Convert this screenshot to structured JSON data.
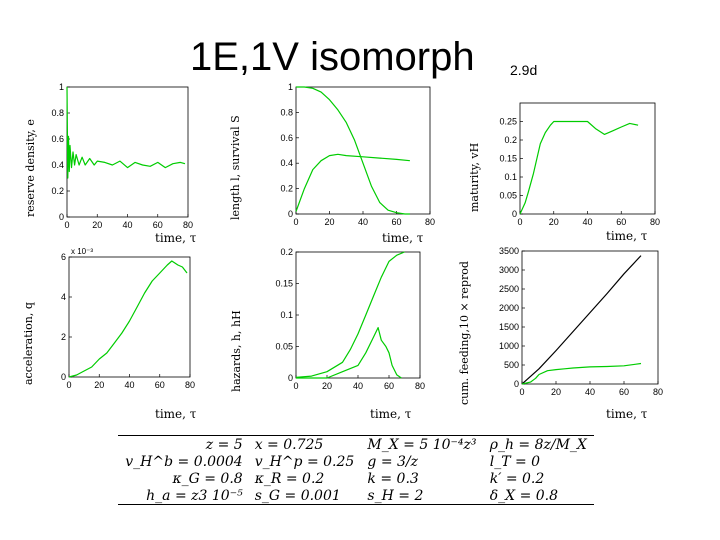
{
  "title": "1E,1V isomorph",
  "subtitle": "2.9d",
  "axis_labels": {
    "p1_y": "reserve density, e",
    "p2_y": "length l, survival S",
    "p3_y": "maturity, vH",
    "p4_y": "acceleration, q",
    "p5_y": "hazards, h, hH",
    "p6_y": "cum. feeding,10 × reprod",
    "x": "time, τ"
  },
  "chart_data": [
    {
      "id": "p1",
      "type": "line",
      "title": "",
      "xlabel": "time, τ",
      "ylabel": "reserve density, e",
      "xlim": [
        0,
        80
      ],
      "ylim": [
        0,
        1
      ],
      "xticks": [
        0,
        20,
        40,
        60,
        80
      ],
      "yticks": [
        0,
        0.2,
        0.4,
        0.6,
        0.8,
        1
      ],
      "xtick_labels": [
        "0",
        "20",
        "40",
        "60",
        "80"
      ],
      "ytick_labels": [
        "0",
        "0.2",
        "0.4",
        "0.6",
        "0.8",
        "1"
      ],
      "series": [
        {
          "name": "e",
          "color": "#00cc00",
          "x": [
            0,
            0.5,
            1,
            1.5,
            2,
            3,
            4,
            5,
            6,
            8,
            10,
            12,
            15,
            18,
            20,
            25,
            30,
            35,
            40,
            45,
            50,
            55,
            60,
            65,
            70,
            75,
            78
          ],
          "y": [
            1.0,
            0.3,
            0.62,
            0.35,
            0.55,
            0.38,
            0.5,
            0.4,
            0.48,
            0.4,
            0.46,
            0.4,
            0.45,
            0.4,
            0.43,
            0.42,
            0.4,
            0.43,
            0.38,
            0.42,
            0.4,
            0.39,
            0.42,
            0.38,
            0.41,
            0.42,
            0.41
          ]
        }
      ]
    },
    {
      "id": "p2",
      "type": "line",
      "title": "",
      "xlabel": "time, τ",
      "ylabel": "length l, survival S",
      "xlim": [
        0,
        80
      ],
      "ylim": [
        0,
        1
      ],
      "xticks": [
        0,
        20,
        40,
        60,
        80
      ],
      "yticks": [
        0,
        0.2,
        0.4,
        0.6,
        0.8,
        1
      ],
      "xtick_labels": [
        "0",
        "20",
        "40",
        "60",
        "80"
      ],
      "ytick_labels": [
        "0",
        "0.2",
        "0.4",
        "0.6",
        "0.8",
        "1"
      ],
      "series": [
        {
          "name": "S",
          "color": "#00cc00",
          "x": [
            0,
            5,
            10,
            15,
            20,
            25,
            30,
            35,
            40,
            45,
            50,
            55,
            60,
            65,
            68
          ],
          "y": [
            1.0,
            1.0,
            0.99,
            0.96,
            0.9,
            0.82,
            0.72,
            0.58,
            0.4,
            0.22,
            0.09,
            0.03,
            0.01,
            0.0,
            0.0
          ]
        },
        {
          "name": "l",
          "color": "#00cc00",
          "x": [
            0,
            5,
            10,
            15,
            20,
            25,
            30,
            40,
            50,
            60,
            68
          ],
          "y": [
            0.02,
            0.2,
            0.35,
            0.42,
            0.46,
            0.47,
            0.46,
            0.45,
            0.44,
            0.43,
            0.42
          ]
        }
      ]
    },
    {
      "id": "p3",
      "type": "line",
      "title": "",
      "xlabel": "time, τ",
      "ylabel": "maturity, vH",
      "xlim": [
        0,
        80
      ],
      "ylim": [
        0,
        0.3
      ],
      "xticks": [
        0,
        20,
        40,
        60,
        80
      ],
      "yticks": [
        0,
        0.05,
        0.1,
        0.15,
        0.2,
        0.25
      ],
      "xtick_labels": [
        "0",
        "20",
        "40",
        "60",
        "80"
      ],
      "ytick_labels": [
        "0",
        "0.05",
        "0.1",
        "0.15",
        "0.2",
        "0.25"
      ],
      "series": [
        {
          "name": "vH",
          "color": "#00cc00",
          "x": [
            0,
            3,
            5,
            8,
            10,
            12,
            15,
            18,
            20,
            30,
            40,
            45,
            50,
            55,
            60,
            65,
            70
          ],
          "y": [
            0,
            0.03,
            0.06,
            0.11,
            0.15,
            0.19,
            0.22,
            0.24,
            0.25,
            0.25,
            0.25,
            0.23,
            0.215,
            0.225,
            0.235,
            0.245,
            0.24
          ]
        }
      ]
    },
    {
      "id": "p4",
      "type": "line",
      "title": "",
      "xlabel": "time, τ",
      "ylabel": "acceleration, q",
      "xlim": [
        0,
        80
      ],
      "ylim": [
        0,
        0.006
      ],
      "xticks": [
        0,
        20,
        40,
        60,
        80
      ],
      "yticks": [
        0,
        0.002,
        0.004,
        0.006
      ],
      "xtick_labels": [
        "0",
        "20",
        "40",
        "60",
        "80"
      ],
      "ytick_labels": [
        "0",
        "2",
        "4",
        "6"
      ],
      "exponent_label": "x 10⁻³",
      "series": [
        {
          "name": "q",
          "color": "#00cc00",
          "x": [
            0,
            5,
            10,
            15,
            20,
            25,
            30,
            35,
            40,
            45,
            50,
            55,
            60,
            65,
            68,
            72,
            75,
            78
          ],
          "y": [
            0,
            0.0001,
            0.0003,
            0.0005,
            0.0009,
            0.0012,
            0.0017,
            0.0022,
            0.0028,
            0.0035,
            0.0042,
            0.0048,
            0.0052,
            0.0056,
            0.0058,
            0.0056,
            0.0055,
            0.0052
          ]
        }
      ]
    },
    {
      "id": "p5",
      "type": "line",
      "title": "",
      "xlabel": "time, τ",
      "ylabel": "hazards, h, hH",
      "xlim": [
        0,
        80
      ],
      "ylim": [
        0,
        0.2
      ],
      "xticks": [
        0,
        20,
        40,
        60,
        80
      ],
      "yticks": [
        0,
        0.05,
        0.1,
        0.15,
        0.2
      ],
      "xtick_labels": [
        "0",
        "20",
        "40",
        "60",
        "80"
      ],
      "ytick_labels": [
        "0",
        "0.05",
        "0.1",
        "0.15",
        "0.2"
      ],
      "series": [
        {
          "name": "h",
          "color": "#00cc00",
          "x": [
            0,
            10,
            20,
            30,
            35,
            40,
            45,
            50,
            55,
            60,
            65,
            70
          ],
          "y": [
            0.001,
            0.003,
            0.01,
            0.025,
            0.045,
            0.07,
            0.1,
            0.13,
            0.16,
            0.185,
            0.195,
            0.2
          ]
        },
        {
          "name": "hH",
          "color": "#00cc00",
          "x": [
            0,
            20,
            30,
            40,
            45,
            50,
            53,
            55,
            58,
            60,
            62,
            65,
            68
          ],
          "y": [
            0,
            0,
            0.01,
            0.02,
            0.04,
            0.065,
            0.08,
            0.06,
            0.05,
            0.04,
            0.02,
            0.005,
            0
          ]
        }
      ]
    },
    {
      "id": "p6",
      "type": "line",
      "title": "",
      "xlabel": "time, τ",
      "ylabel": "cum. feeding,10 × reprod",
      "xlim": [
        0,
        80
      ],
      "ylim": [
        0,
        3500
      ],
      "xticks": [
        0,
        20,
        40,
        60,
        80
      ],
      "yticks": [
        0,
        500,
        1000,
        1500,
        2000,
        2500,
        3000,
        3500
      ],
      "xtick_labels": [
        "0",
        "20",
        "40",
        "60",
        "80"
      ],
      "ytick_labels": [
        "0",
        "500",
        "1000",
        "1500",
        "2000",
        "2500",
        "3000",
        "3500"
      ],
      "series": [
        {
          "name": "cum. feeding",
          "color": "#000000",
          "x": [
            0,
            10,
            20,
            30,
            40,
            50,
            60,
            70
          ],
          "y": [
            0,
            400,
            880,
            1380,
            1880,
            2380,
            2900,
            3380
          ]
        },
        {
          "name": "10 × reprod",
          "color": "#00cc00",
          "x": [
            0,
            5,
            8,
            10,
            15,
            20,
            25,
            30,
            40,
            50,
            60,
            70
          ],
          "y": [
            0,
            50,
            150,
            250,
            350,
            380,
            400,
            420,
            450,
            460,
            480,
            540
          ]
        }
      ]
    }
  ],
  "params": [
    [
      "z = 5",
      "x = 0.725",
      "M_X = 5 10⁻⁴z³",
      "ρ_h = 8z/M_X"
    ],
    [
      "v_H^b = 0.0004",
      "v_H^p = 0.25",
      "g = 3/z",
      "l_T = 0"
    ],
    [
      "κ_G = 0.8",
      "κ_R = 0.2",
      "k = 0.3",
      "k′ = 0.2"
    ],
    [
      "h_a = z3 10⁻⁵",
      "s_G = 0.001",
      "s_H = 2",
      "δ_X = 0.8"
    ]
  ]
}
